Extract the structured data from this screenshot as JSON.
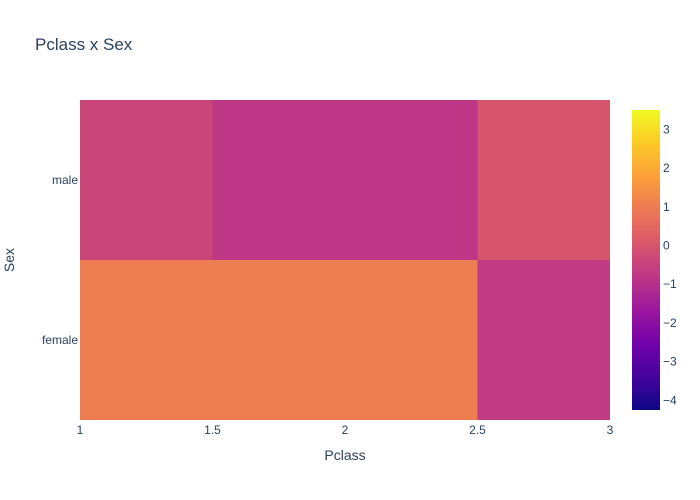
{
  "chart_data": {
    "type": "heatmap",
    "title": "Pclass x Sex",
    "xlabel": "Pclass",
    "ylabel": "Sex",
    "xlim": [
      1,
      3
    ],
    "x_ticks": [
      "1",
      "1.5",
      "2",
      "2.5",
      "3"
    ],
    "y_categories": [
      "male",
      "female"
    ],
    "cells": [
      {
        "y": "male",
        "x_from": 1,
        "x_to": 1.5,
        "value": -0.4
      },
      {
        "y": "male",
        "x_from": 1.5,
        "x_to": 2.5,
        "value": -0.8
      },
      {
        "y": "male",
        "x_from": 2.5,
        "x_to": 3,
        "value": 0.0
      },
      {
        "y": "female",
        "x_from": 1,
        "x_to": 1.5,
        "value": 1.0
      },
      {
        "y": "female",
        "x_from": 1.5,
        "x_to": 2.5,
        "value": 1.0
      },
      {
        "y": "female",
        "x_from": 2.5,
        "x_to": 3,
        "value": -0.7
      }
    ],
    "colorbar": {
      "range": [
        -4.25,
        3.5
      ],
      "ticks": [
        "3",
        "2",
        "1",
        "0",
        "−1",
        "−2",
        "−3",
        "−4"
      ],
      "tick_values": [
        3,
        2,
        1,
        0,
        -1,
        -2,
        -3,
        -4
      ],
      "colorscale": [
        "#0d0887",
        "#46039f",
        "#7201a8",
        "#9c179e",
        "#bd3786",
        "#d8576b",
        "#ed7953",
        "#fb9f3a",
        "#fdca26",
        "#f0f921"
      ]
    }
  }
}
